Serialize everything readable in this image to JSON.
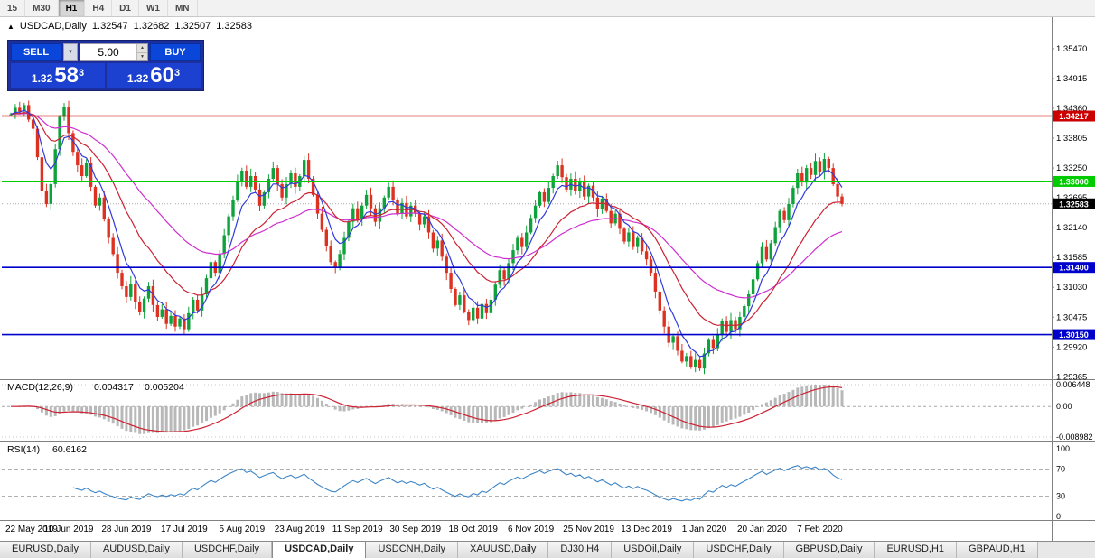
{
  "window": {
    "timeframes": [
      {
        "label": "15",
        "active": false
      },
      {
        "label": "M30",
        "active": false
      },
      {
        "label": "H1",
        "active": true
      },
      {
        "label": "H4",
        "active": false
      },
      {
        "label": "D1",
        "active": false
      },
      {
        "label": "W1",
        "active": false
      },
      {
        "label": "MN",
        "active": false
      }
    ],
    "tabs": [
      {
        "label": "EURUSD,Daily",
        "active": false
      },
      {
        "label": "AUDUSD,Daily",
        "active": false
      },
      {
        "label": "USDCHF,Daily",
        "active": false
      },
      {
        "label": "USDCAD,Daily",
        "active": true
      },
      {
        "label": "USDCNH,Daily",
        "active": false
      },
      {
        "label": "XAUUSD,Daily",
        "active": false
      },
      {
        "label": "DJ30,H4",
        "active": false
      },
      {
        "label": "USDOil,Daily",
        "active": false
      },
      {
        "label": "USDCHF,Daily",
        "active": false
      },
      {
        "label": "GBPUSD,Daily",
        "active": false
      },
      {
        "label": "EURUSD,H1",
        "active": false
      },
      {
        "label": "GBPAUD,H1",
        "active": false
      }
    ]
  },
  "chart_data": {
    "type": "candlestick",
    "symbol": "USDCAD",
    "timeframe": "Daily",
    "ohlc_header": {
      "icon": "▲",
      "title": "USDCAD,Daily",
      "open": "1.32547",
      "high": "1.32682",
      "low": "1.32507",
      "close": "1.32583"
    },
    "one_click": {
      "sell_label": "SELL",
      "buy_label": "BUY",
      "lot": "5.00",
      "sell_price": {
        "small": "1.32",
        "big": "58",
        "sup": "3"
      },
      "buy_price": {
        "small": "1.32",
        "big": "60",
        "sup": "3"
      }
    },
    "price_axis_labels": [
      "1.35470",
      "1.34915",
      "1.34360",
      "1.33805",
      "1.33250",
      "1.32695",
      "1.32140",
      "1.31585",
      "1.31030",
      "1.30475",
      "1.29920",
      "1.29365"
    ],
    "current_price": "1.32583",
    "levels": [
      {
        "price": 1.34217,
        "tag": "1.34217",
        "color": "#cc0000",
        "width": 1.4
      },
      {
        "price": 1.33,
        "tag": "1.33000",
        "color": "#00cc00",
        "width": 2
      },
      {
        "price": 1.314,
        "tag": "1.31400",
        "color": "#0000cc",
        "width": 1.6
      },
      {
        "price": 1.3015,
        "tag": "1.30150",
        "color": "#0000cc",
        "width": 1.6
      }
    ],
    "date_labels": [
      "22 May 2019",
      "10 Jun 2019",
      "28 Jun 2019",
      "17 Jul 2019",
      "5 Aug 2019",
      "23 Aug 2019",
      "11 Sep 2019",
      "30 Sep 2019",
      "18 Oct 2019",
      "6 Nov 2019",
      "25 Nov 2019",
      "13 Dec 2019",
      "1 Jan 2020",
      "20 Jan 2020",
      "7 Feb 2020"
    ],
    "candles_per_date_label": 13,
    "closes": [
      1.3425,
      1.3437,
      1.343,
      1.3442,
      1.3415,
      1.3398,
      1.3345,
      1.3282,
      1.3258,
      1.3295,
      1.336,
      1.342,
      1.3438,
      1.339,
      1.3355,
      1.333,
      1.331,
      1.3335,
      1.329,
      1.3255,
      1.327,
      1.323,
      1.3195,
      1.3165,
      1.313,
      1.3105,
      1.3085,
      1.311,
      1.3075,
      1.3058,
      1.3082,
      1.3105,
      1.307,
      1.3048,
      1.3062,
      1.3035,
      1.305,
      1.303,
      1.3045,
      1.3025,
      1.3055,
      1.308,
      1.306,
      1.309,
      1.312,
      1.315,
      1.313,
      1.3165,
      1.32,
      1.3235,
      1.3265,
      1.33,
      1.332,
      1.329,
      1.331,
      1.3285,
      1.3255,
      1.328,
      1.3305,
      1.3325,
      1.3295,
      1.327,
      1.3295,
      1.3315,
      1.329,
      1.331,
      1.334,
      1.3305,
      1.3275,
      1.324,
      1.321,
      1.318,
      1.315,
      1.314,
      1.3165,
      1.3195,
      1.3225,
      1.325,
      1.323,
      1.3255,
      1.3275,
      1.325,
      1.3225,
      1.325,
      1.327,
      1.329,
      1.3265,
      1.324,
      1.326,
      1.3235,
      1.3255,
      1.324,
      1.322,
      1.3235,
      1.3205,
      1.3175,
      1.319,
      1.316,
      1.313,
      1.31,
      1.307,
      1.3088,
      1.3058,
      1.3042,
      1.3065,
      1.3045,
      1.3072,
      1.3055,
      1.308,
      1.3108,
      1.3135,
      1.3118,
      1.3148,
      1.3172,
      1.3195,
      1.3178,
      1.3205,
      1.3232,
      1.3255,
      1.328,
      1.3262,
      1.3288,
      1.331,
      1.333,
      1.3308,
      1.3285,
      1.3305,
      1.3282,
      1.33,
      1.3272,
      1.3292,
      1.327,
      1.3248,
      1.3268,
      1.3245,
      1.3222,
      1.324,
      1.3212,
      1.3188,
      1.3205,
      1.3178,
      1.3195,
      1.317,
      1.3155,
      1.313,
      1.3095,
      1.306,
      1.303,
      1.3,
      1.3012,
      1.2985,
      1.2965,
      1.2975,
      1.2955,
      1.2968,
      1.2952,
      1.298,
      1.3005,
      1.299,
      1.3015,
      1.304,
      1.302,
      1.3042,
      1.3025,
      1.3048,
      1.3068,
      1.309,
      1.3118,
      1.3148,
      1.3178,
      1.3155,
      1.3185,
      1.3215,
      1.3245,
      1.3228,
      1.3258,
      1.3288,
      1.3315,
      1.3298,
      1.3325,
      1.3312,
      1.3338,
      1.3318,
      1.3342,
      1.3325,
      1.3295,
      1.3272,
      1.3258
    ],
    "colors": {
      "candle_up": "#0fa23c",
      "candle_down": "#dd3222",
      "ma_fast": "#2e3bd8",
      "ma_mid": "#cc2233",
      "ma_slow": "#cf2fcf",
      "rsi_line": "#3d85c6",
      "macd_histogram": "#b8b8b8",
      "macd_signal": "#cc2233",
      "panel_blue": "#0b46db"
    },
    "indicators": {
      "macd": {
        "label": "MACD(12,26,9)",
        "value_main": "0.004317",
        "value_signal": "0.005204",
        "fast": 12,
        "slow": 26,
        "signal": 9,
        "scale_max": 0.006448,
        "scale_min": -0.008982,
        "axis": [
          "0.006448",
          "0.00",
          "-0.008982"
        ]
      },
      "rsi": {
        "label": "RSI(14)",
        "value": "60.6162",
        "period": 14,
        "axis": [
          "100",
          "70",
          "30",
          "0"
        ],
        "levels": [
          70,
          30
        ]
      }
    }
  }
}
